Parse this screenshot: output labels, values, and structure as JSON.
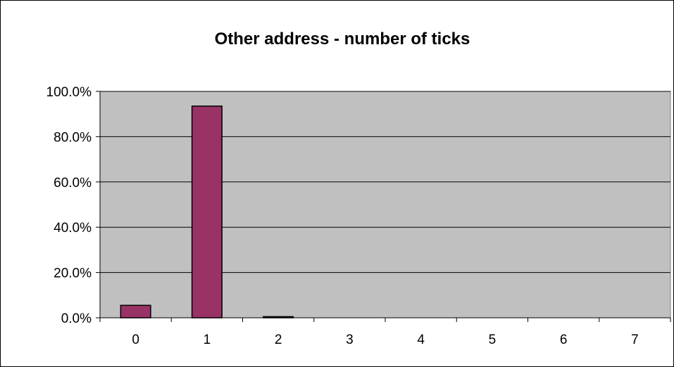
{
  "chart_data": {
    "type": "bar",
    "title": "Other address - number of ticks",
    "xlabel": "",
    "ylabel": "",
    "categories": [
      "0",
      "1",
      "2",
      "3",
      "4",
      "5",
      "6",
      "7"
    ],
    "values": [
      5.5,
      93.5,
      0.5,
      0,
      0,
      0,
      0,
      0
    ],
    "ylim": [
      0,
      100
    ],
    "yticks": [
      0,
      20,
      40,
      60,
      80,
      100
    ],
    "ytick_labels": [
      "0.0%",
      "20.0%",
      "40.0%",
      "60.0%",
      "80.0%",
      "100.0%"
    ],
    "grid": true,
    "legend": "none",
    "colors": {
      "bar_fill": "#993366",
      "bar_stroke": "#000000",
      "plot_background": "#c0c0c0",
      "gridline": "#000000",
      "axis": "#000000"
    }
  }
}
